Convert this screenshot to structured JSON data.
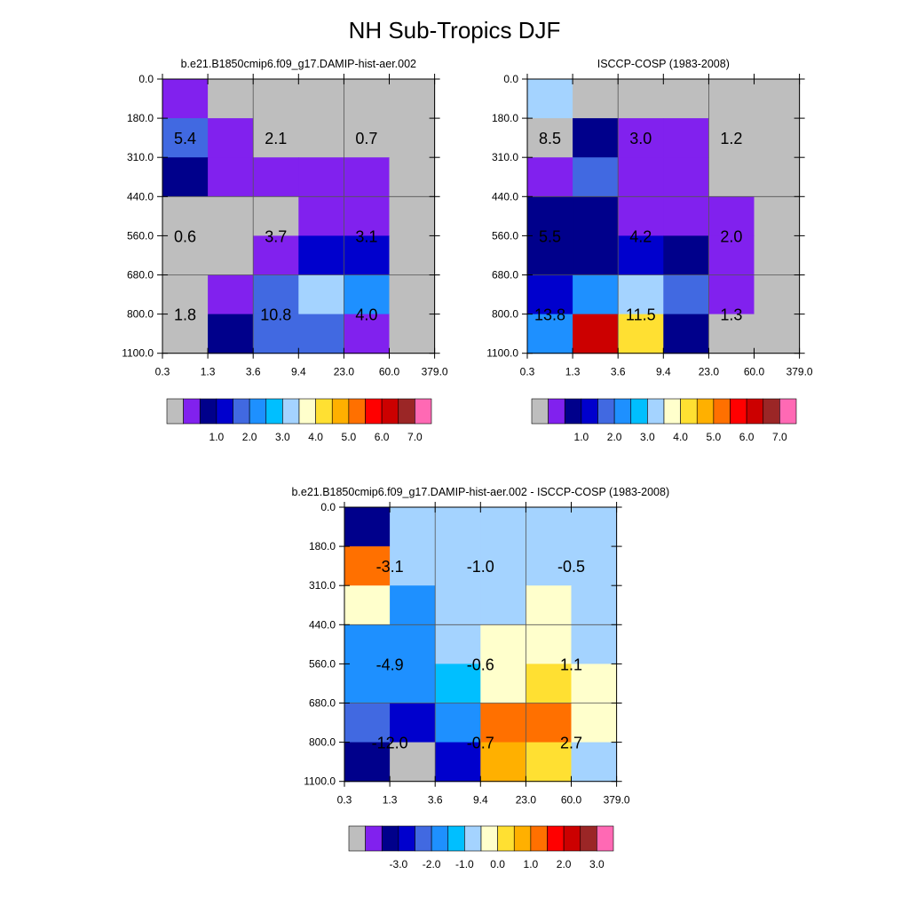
{
  "title": "NH Sub-Tropics DJF",
  "colors": {
    "missing": "#bebebe",
    "palette": [
      "#bebebe",
      "#8121ee",
      "#00008b",
      "#0000cd",
      "#4169e1",
      "#1e90ff",
      "#00bfff",
      "#a4d3ff",
      "#ffffcc",
      "#ffe032",
      "#ffb000",
      "#ff7000",
      "#ff0000",
      "#cc0000",
      "#9b2626",
      "#ff69b4"
    ]
  },
  "chart_data": [
    {
      "type": "heatmap",
      "title": "b.e21.B1850cmip6.f09_g17.DAMIP-hist-aer.002",
      "xlabel": "",
      "ylabel": "",
      "x_ticks": [
        "0.3",
        "1.3",
        "3.6",
        "9.4",
        "23.0",
        "60.0",
        "379.0"
      ],
      "y_ticks": [
        "0.0",
        "180.0",
        "310.0",
        "440.0",
        "560.0",
        "680.0",
        "800.0",
        "1100.0"
      ],
      "cell_levels": [
        [
          1,
          0,
          0,
          0,
          0,
          0
        ],
        [
          4,
          1,
          0,
          0,
          0,
          0
        ],
        [
          2,
          1,
          1,
          1,
          1,
          0
        ],
        [
          0,
          0,
          0,
          1,
          1,
          0
        ],
        [
          0,
          0,
          1,
          3,
          3,
          0
        ],
        [
          0,
          1,
          4,
          7,
          5,
          0
        ],
        [
          0,
          2,
          4,
          4,
          1,
          0
        ]
      ],
      "value_labels": [
        {
          "row": 1.5,
          "col": 0.5,
          "text": "5.4"
        },
        {
          "row": 1.5,
          "col": 2.5,
          "text": "2.1"
        },
        {
          "row": 1.5,
          "col": 4.5,
          "text": "0.7"
        },
        {
          "row": 4.0,
          "col": 0.5,
          "text": "0.6"
        },
        {
          "row": 4.0,
          "col": 2.5,
          "text": "3.7"
        },
        {
          "row": 4.0,
          "col": 4.5,
          "text": "3.1"
        },
        {
          "row": 6.0,
          "col": 0.5,
          "text": "1.8"
        },
        {
          "row": 6.0,
          "col": 2.5,
          "text": "10.8"
        },
        {
          "row": 6.0,
          "col": 4.5,
          "text": "4.0"
        }
      ],
      "colorbar_labels": [
        "1.0",
        "2.0",
        "3.0",
        "4.0",
        "5.0",
        "6.0",
        "7.0"
      ]
    },
    {
      "type": "heatmap",
      "title": "ISCCP-COSP (1983-2008)",
      "xlabel": "",
      "ylabel": "",
      "x_ticks": [
        "0.3",
        "1.3",
        "3.6",
        "9.4",
        "23.0",
        "60.0",
        "379.0"
      ],
      "y_ticks": [
        "0.0",
        "180.0",
        "310.0",
        "440.0",
        "560.0",
        "680.0",
        "800.0",
        "1100.0"
      ],
      "cell_levels": [
        [
          7,
          0,
          0,
          0,
          0,
          0
        ],
        [
          0,
          2,
          1,
          1,
          0,
          0
        ],
        [
          1,
          4,
          1,
          1,
          0,
          0
        ],
        [
          2,
          2,
          1,
          1,
          1,
          0
        ],
        [
          2,
          2,
          3,
          2,
          1,
          0
        ],
        [
          3,
          5,
          7,
          4,
          1,
          0
        ],
        [
          5,
          13,
          9,
          2,
          0,
          0
        ]
      ],
      "value_labels": [
        {
          "row": 1.5,
          "col": 0.5,
          "text": "8.5"
        },
        {
          "row": 1.5,
          "col": 2.5,
          "text": "3.0"
        },
        {
          "row": 1.5,
          "col": 4.5,
          "text": "1.2"
        },
        {
          "row": 4.0,
          "col": 0.5,
          "text": "5.5"
        },
        {
          "row": 4.0,
          "col": 2.5,
          "text": "4.2"
        },
        {
          "row": 4.0,
          "col": 4.5,
          "text": "2.0"
        },
        {
          "row": 6.0,
          "col": 0.5,
          "text": "13.8"
        },
        {
          "row": 6.0,
          "col": 2.5,
          "text": "11.5"
        },
        {
          "row": 6.0,
          "col": 4.5,
          "text": "1.3"
        }
      ],
      "colorbar_labels": [
        "1.0",
        "2.0",
        "3.0",
        "4.0",
        "5.0",
        "6.0",
        "7.0"
      ]
    },
    {
      "type": "heatmap",
      "title": "b.e21.B1850cmip6.f09_g17.DAMIP-hist-aer.002 - ISCCP-COSP (1983-2008)",
      "xlabel": "",
      "ylabel": "",
      "x_ticks": [
        "0.3",
        "1.3",
        "3.6",
        "9.4",
        "23.0",
        "60.0",
        "379.0"
      ],
      "y_ticks": [
        "0.0",
        "180.0",
        "310.0",
        "440.0",
        "560.0",
        "680.0",
        "800.0",
        "1100.0"
      ],
      "cell_levels": [
        [
          2,
          7,
          7,
          7,
          7,
          7
        ],
        [
          11,
          7,
          7,
          7,
          7,
          7
        ],
        [
          8,
          5,
          7,
          7,
          8,
          7
        ],
        [
          5,
          5,
          7,
          8,
          8,
          7
        ],
        [
          5,
          5,
          6,
          8,
          9,
          8
        ],
        [
          4,
          3,
          5,
          11,
          11,
          8
        ],
        [
          2,
          0,
          3,
          10,
          9,
          7
        ]
      ],
      "value_labels": [
        {
          "row": 1.5,
          "col": 1.0,
          "text": "-3.1"
        },
        {
          "row": 1.5,
          "col": 3.0,
          "text": "-1.0"
        },
        {
          "row": 1.5,
          "col": 5.0,
          "text": "-0.5"
        },
        {
          "row": 4.0,
          "col": 1.0,
          "text": "-4.9"
        },
        {
          "row": 4.0,
          "col": 3.0,
          "text": "-0.6"
        },
        {
          "row": 4.0,
          "col": 5.0,
          "text": "1.1"
        },
        {
          "row": 6.0,
          "col": 1.0,
          "text": "-12.0"
        },
        {
          "row": 6.0,
          "col": 3.0,
          "text": "-0.7"
        },
        {
          "row": 6.0,
          "col": 5.0,
          "text": "2.7"
        }
      ],
      "colorbar_labels": [
        "-3.0",
        "-2.0",
        "-1.0",
        "0.0",
        "1.0",
        "2.0",
        "3.0"
      ]
    }
  ]
}
